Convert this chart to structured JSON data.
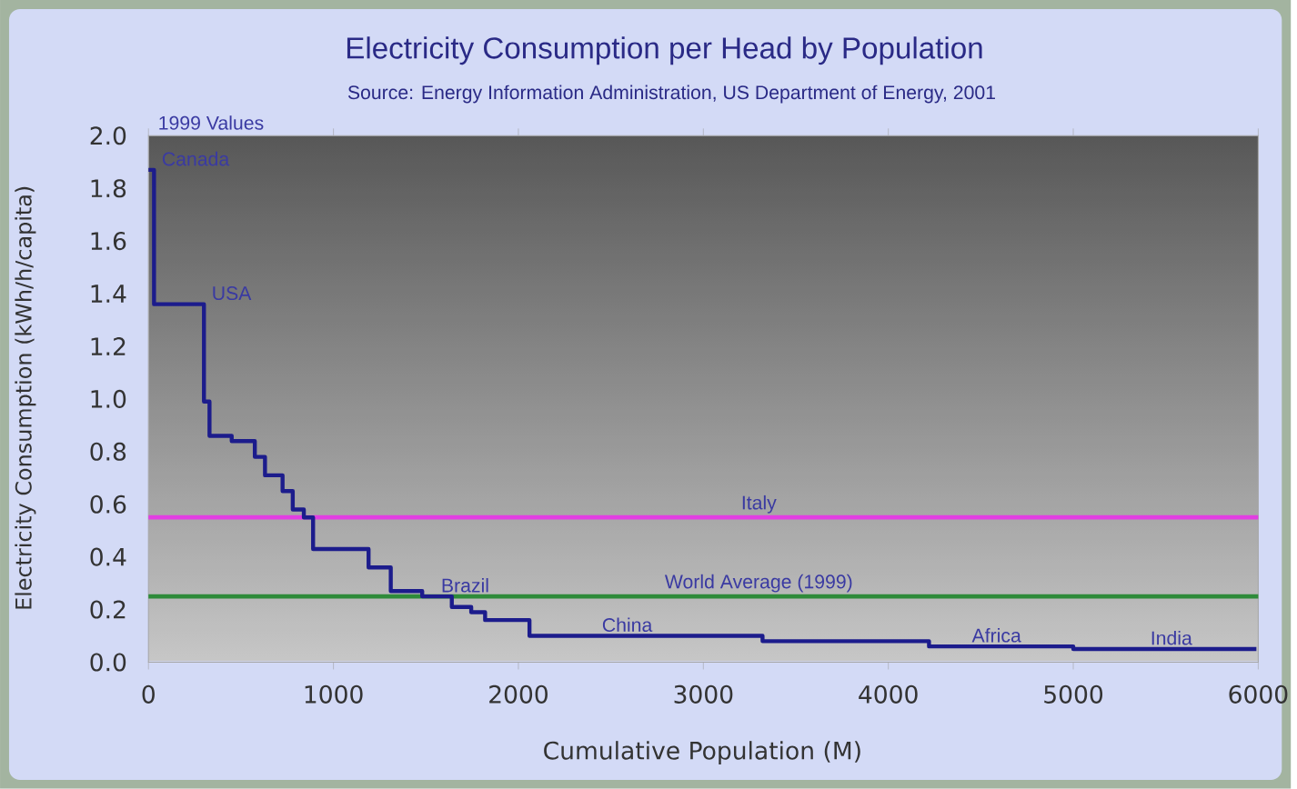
{
  "chart_data": {
    "type": "step",
    "title": "Electricity Consumption per Head by Population",
    "subtitle": "Source: Energy Information Administration, US Department of Energy, 2001",
    "xlabel": "Cumulative Population (M)",
    "ylabel": "Electricity Consumption (kWh/h/capita)",
    "x": [
      0,
      30,
      300,
      330,
      450,
      575,
      630,
      725,
      780,
      840,
      890,
      1190,
      1310,
      1480,
      1640,
      1745,
      1820,
      2060,
      3320,
      4220,
      5000,
      5990
    ],
    "values": [
      1.87,
      1.36,
      0.99,
      0.86,
      0.84,
      0.78,
      0.71,
      0.65,
      0.58,
      0.55,
      0.43,
      0.36,
      0.27,
      0.25,
      0.21,
      0.19,
      0.16,
      0.1,
      0.08,
      0.06,
      0.05,
      0.05
    ],
    "color": "#1c1c8c",
    "xlim": [
      0,
      6000
    ],
    "ylim": [
      0,
      2
    ],
    "xticks": [
      0,
      1000,
      2000,
      3000,
      4000,
      5000,
      6000
    ],
    "yticks": [
      {
        "value": 0,
        "label": "0.0"
      },
      {
        "value": 0.2,
        "label": "0.2"
      },
      {
        "value": 0.4,
        "label": "0.4"
      },
      {
        "value": 0.6,
        "label": "0.6"
      },
      {
        "value": 0.8,
        "label": "0.8"
      },
      {
        "value": 1.0,
        "label": "1.0"
      },
      {
        "value": 1.2,
        "label": "1.2"
      },
      {
        "value": 1.4,
        "label": "1.4"
      },
      {
        "value": 1.6,
        "label": "1.6"
      },
      {
        "value": 1.8,
        "label": "1.8"
      },
      {
        "value": 2.0,
        "label": "2.0"
      }
    ],
    "annotations": [
      "1999 Values",
      {
        "text": "Canada",
        "x": 30,
        "y": 1.87
      },
      {
        "text": "USA",
        "x": 300,
        "y": 1.36
      },
      {
        "text": "Brazil",
        "x": 1540,
        "y": 0.25
      },
      {
        "text": "China",
        "x": 2410,
        "y": 0.1
      },
      {
        "text": "Africa",
        "x": 4410,
        "y": 0.06
      },
      {
        "text": "India",
        "x": 5375,
        "y": 0.05
      }
    ],
    "ref_lines": [
      {
        "axis": "y",
        "value": 0.55,
        "label": "Italy",
        "color": "#e23ee2"
      },
      {
        "axis": "y",
        "value": 0.25,
        "label": "World Average (1999)",
        "color": "#2e8b3a"
      }
    ]
  }
}
